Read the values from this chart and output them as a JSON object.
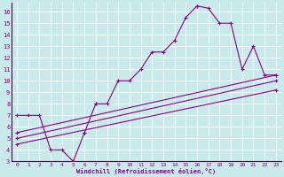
{
  "xlabel": "Windchill (Refroidissement éolien,°C)",
  "background_color": "#c8eaea",
  "line_color": "#880088",
  "grid_color": "#ffffff",
  "xlim": [
    -0.5,
    23.5
  ],
  "ylim": [
    3,
    16.8
  ],
  "xticks": [
    0,
    1,
    2,
    3,
    4,
    5,
    6,
    7,
    8,
    9,
    10,
    11,
    12,
    13,
    14,
    15,
    16,
    17,
    18,
    19,
    20,
    21,
    22,
    23
  ],
  "yticks": [
    3,
    4,
    5,
    6,
    7,
    8,
    9,
    10,
    11,
    12,
    13,
    14,
    15,
    16
  ],
  "curve1_x": [
    0,
    1,
    2,
    3,
    4,
    5,
    5,
    6,
    6,
    7,
    7,
    8,
    9,
    10,
    11,
    12,
    13,
    14,
    15,
    16,
    16,
    17,
    18,
    19,
    20,
    21,
    22,
    23
  ],
  "curve1_y": [
    7,
    7,
    7,
    4,
    4,
    3,
    3,
    5.5,
    5.5,
    8,
    8,
    8,
    10,
    10,
    11,
    12.5,
    12.5,
    13.5,
    15.5,
    16.5,
    16.5,
    16.3,
    15,
    15,
    11,
    13,
    10.5,
    10.5
  ],
  "line1_x": [
    0,
    23
  ],
  "line1_y": [
    5.5,
    10.5
  ],
  "line2_x": [
    0,
    23
  ],
  "line2_y": [
    5.0,
    10.0
  ],
  "line3_x": [
    0,
    23
  ],
  "line3_y": [
    4.5,
    9.2
  ]
}
